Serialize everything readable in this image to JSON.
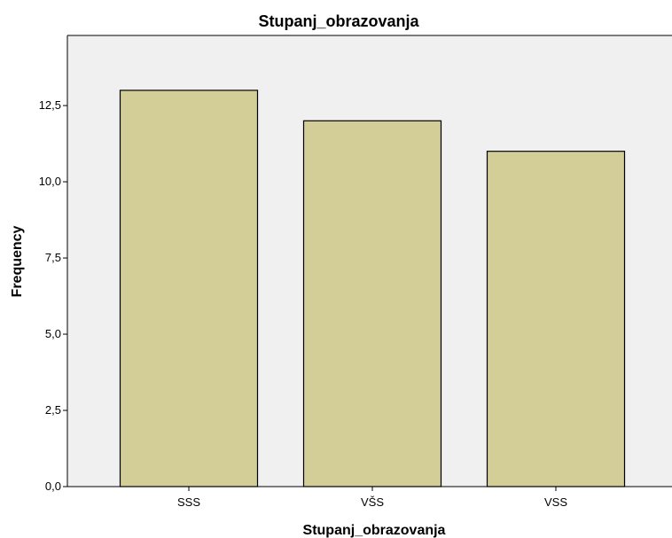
{
  "chart_data": {
    "type": "bar",
    "title": "Stupanj_obrazovanja",
    "xlabel": "Stupanj_obrazovanja",
    "ylabel": "Frequency",
    "categories": [
      "SSS",
      "VŠS",
      "VSS"
    ],
    "values": [
      13,
      12,
      11
    ],
    "ylim": [
      0,
      14.8
    ],
    "yticks": [
      "0,0",
      "2,5",
      "5,0",
      "7,5",
      "10,0",
      "12,5"
    ],
    "ytick_values": [
      0,
      2.5,
      5,
      7.5,
      10,
      12.5
    ],
    "grid": false,
    "legend": "none",
    "colors": {
      "bar_fill": "#d3ce97",
      "bar_stroke": "#000000",
      "plot_background": "#f0f0f0",
      "axis": "#000000"
    }
  }
}
